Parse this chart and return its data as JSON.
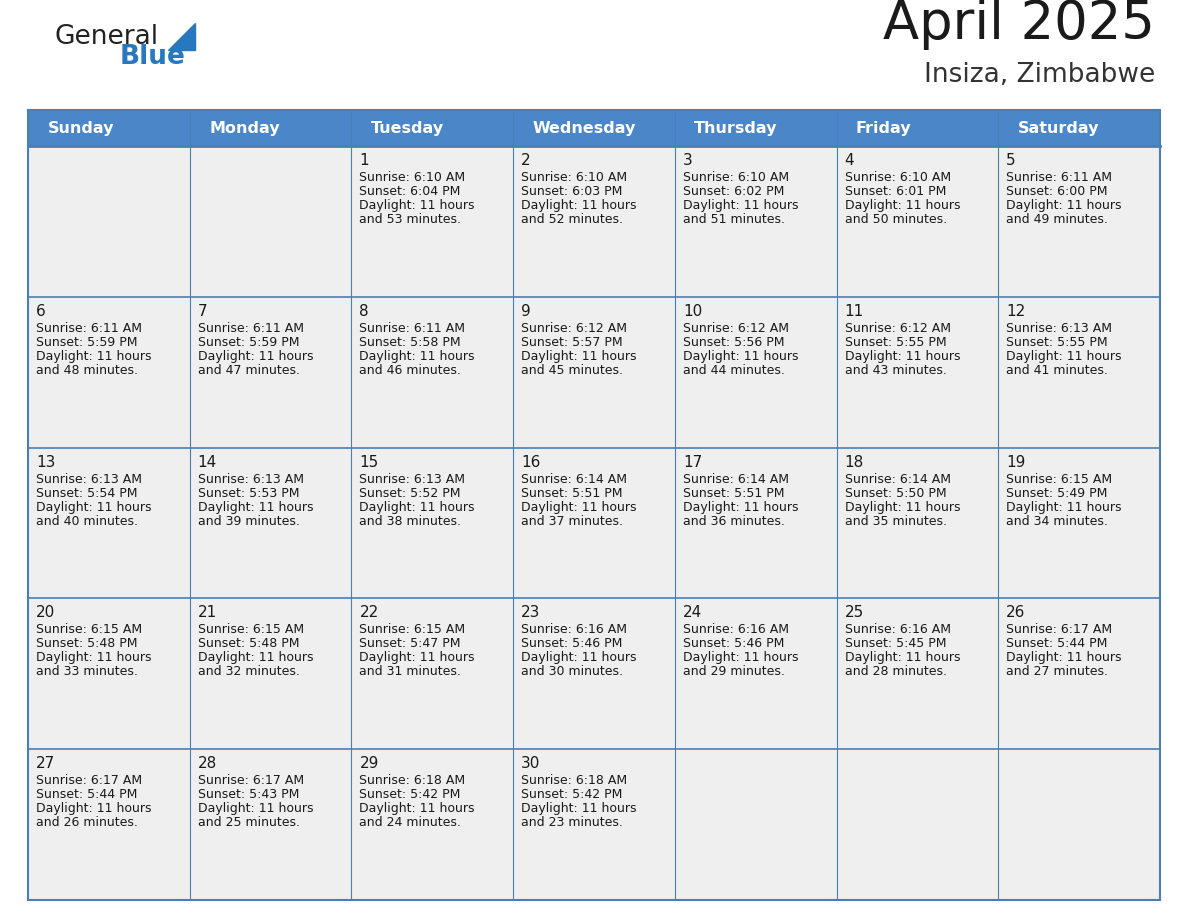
{
  "title": "April 2025",
  "subtitle": "Insiza, Zimbabwe",
  "header_bg": "#4a86c8",
  "header_text": "#ffffff",
  "cell_bg": "#efefef",
  "border_color": "#4a7fb5",
  "text_color": "#1a1a1a",
  "day_names": [
    "Sunday",
    "Monday",
    "Tuesday",
    "Wednesday",
    "Thursday",
    "Friday",
    "Saturday"
  ],
  "logo_general_color": "#222222",
  "logo_blue_color": "#2878c0",
  "calendar_data": [
    [
      {
        "day": "",
        "sunrise": "",
        "sunset": "",
        "daylight": ""
      },
      {
        "day": "",
        "sunrise": "",
        "sunset": "",
        "daylight": ""
      },
      {
        "day": "1",
        "sunrise": "6:10 AM",
        "sunset": "6:04 PM",
        "daylight": "11 hours and 53 minutes."
      },
      {
        "day": "2",
        "sunrise": "6:10 AM",
        "sunset": "6:03 PM",
        "daylight": "11 hours and 52 minutes."
      },
      {
        "day": "3",
        "sunrise": "6:10 AM",
        "sunset": "6:02 PM",
        "daylight": "11 hours and 51 minutes."
      },
      {
        "day": "4",
        "sunrise": "6:10 AM",
        "sunset": "6:01 PM",
        "daylight": "11 hours and 50 minutes."
      },
      {
        "day": "5",
        "sunrise": "6:11 AM",
        "sunset": "6:00 PM",
        "daylight": "11 hours and 49 minutes."
      }
    ],
    [
      {
        "day": "6",
        "sunrise": "6:11 AM",
        "sunset": "5:59 PM",
        "daylight": "11 hours and 48 minutes."
      },
      {
        "day": "7",
        "sunrise": "6:11 AM",
        "sunset": "5:59 PM",
        "daylight": "11 hours and 47 minutes."
      },
      {
        "day": "8",
        "sunrise": "6:11 AM",
        "sunset": "5:58 PM",
        "daylight": "11 hours and 46 minutes."
      },
      {
        "day": "9",
        "sunrise": "6:12 AM",
        "sunset": "5:57 PM",
        "daylight": "11 hours and 45 minutes."
      },
      {
        "day": "10",
        "sunrise": "6:12 AM",
        "sunset": "5:56 PM",
        "daylight": "11 hours and 44 minutes."
      },
      {
        "day": "11",
        "sunrise": "6:12 AM",
        "sunset": "5:55 PM",
        "daylight": "11 hours and 43 minutes."
      },
      {
        "day": "12",
        "sunrise": "6:13 AM",
        "sunset": "5:55 PM",
        "daylight": "11 hours and 41 minutes."
      }
    ],
    [
      {
        "day": "13",
        "sunrise": "6:13 AM",
        "sunset": "5:54 PM",
        "daylight": "11 hours and 40 minutes."
      },
      {
        "day": "14",
        "sunrise": "6:13 AM",
        "sunset": "5:53 PM",
        "daylight": "11 hours and 39 minutes."
      },
      {
        "day": "15",
        "sunrise": "6:13 AM",
        "sunset": "5:52 PM",
        "daylight": "11 hours and 38 minutes."
      },
      {
        "day": "16",
        "sunrise": "6:14 AM",
        "sunset": "5:51 PM",
        "daylight": "11 hours and 37 minutes."
      },
      {
        "day": "17",
        "sunrise": "6:14 AM",
        "sunset": "5:51 PM",
        "daylight": "11 hours and 36 minutes."
      },
      {
        "day": "18",
        "sunrise": "6:14 AM",
        "sunset": "5:50 PM",
        "daylight": "11 hours and 35 minutes."
      },
      {
        "day": "19",
        "sunrise": "6:15 AM",
        "sunset": "5:49 PM",
        "daylight": "11 hours and 34 minutes."
      }
    ],
    [
      {
        "day": "20",
        "sunrise": "6:15 AM",
        "sunset": "5:48 PM",
        "daylight": "11 hours and 33 minutes."
      },
      {
        "day": "21",
        "sunrise": "6:15 AM",
        "sunset": "5:48 PM",
        "daylight": "11 hours and 32 minutes."
      },
      {
        "day": "22",
        "sunrise": "6:15 AM",
        "sunset": "5:47 PM",
        "daylight": "11 hours and 31 minutes."
      },
      {
        "day": "23",
        "sunrise": "6:16 AM",
        "sunset": "5:46 PM",
        "daylight": "11 hours and 30 minutes."
      },
      {
        "day": "24",
        "sunrise": "6:16 AM",
        "sunset": "5:46 PM",
        "daylight": "11 hours and 29 minutes."
      },
      {
        "day": "25",
        "sunrise": "6:16 AM",
        "sunset": "5:45 PM",
        "daylight": "11 hours and 28 minutes."
      },
      {
        "day": "26",
        "sunrise": "6:17 AM",
        "sunset": "5:44 PM",
        "daylight": "11 hours and 27 minutes."
      }
    ],
    [
      {
        "day": "27",
        "sunrise": "6:17 AM",
        "sunset": "5:44 PM",
        "daylight": "11 hours and 26 minutes."
      },
      {
        "day": "28",
        "sunrise": "6:17 AM",
        "sunset": "5:43 PM",
        "daylight": "11 hours and 25 minutes."
      },
      {
        "day": "29",
        "sunrise": "6:18 AM",
        "sunset": "5:42 PM",
        "daylight": "11 hours and 24 minutes."
      },
      {
        "day": "30",
        "sunrise": "6:18 AM",
        "sunset": "5:42 PM",
        "daylight": "11 hours and 23 minutes."
      },
      {
        "day": "",
        "sunrise": "",
        "sunset": "",
        "daylight": ""
      },
      {
        "day": "",
        "sunrise": "",
        "sunset": "",
        "daylight": ""
      },
      {
        "day": "",
        "sunrise": "",
        "sunset": "",
        "daylight": ""
      }
    ]
  ]
}
